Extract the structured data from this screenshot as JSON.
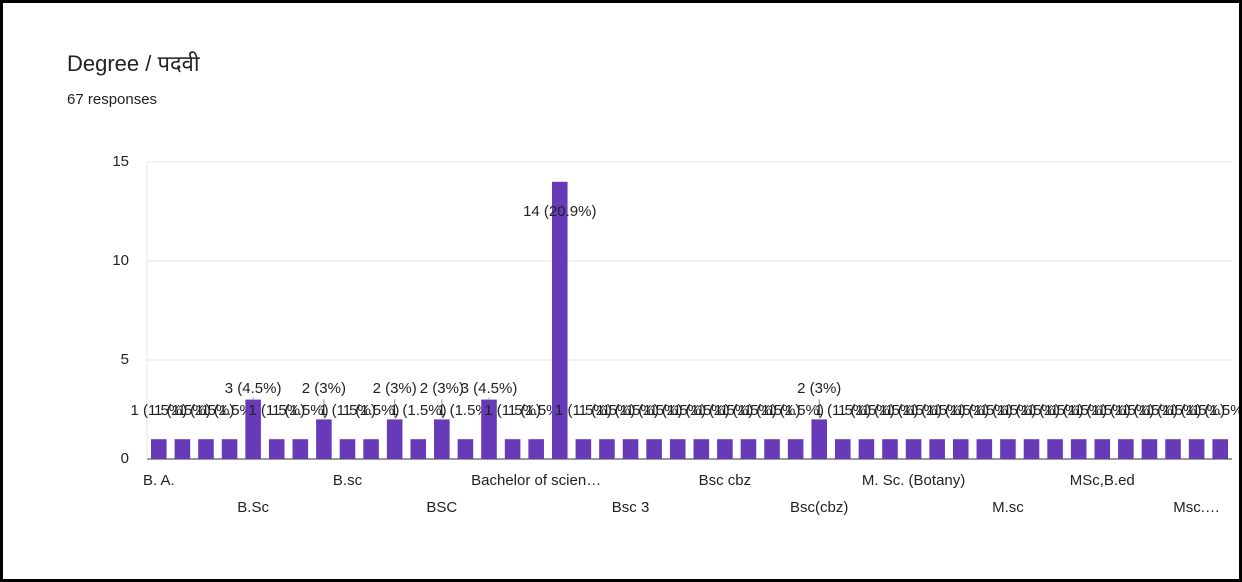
{
  "chart_data": {
    "type": "bar",
    "title": "Degree / पदवी",
    "subtitle": "67 responses",
    "categories": [
      "B. A.",
      null,
      null,
      null,
      "B.Sc",
      null,
      null,
      null,
      "B.sc",
      null,
      null,
      null,
      "BSC",
      null,
      null,
      null,
      "Bachelor of scien…",
      null,
      null,
      null,
      "Bsc 3",
      null,
      null,
      null,
      "Bsc cbz",
      null,
      null,
      null,
      "Bsc(cbz)",
      null,
      null,
      null,
      "M. Sc. (Botany)",
      null,
      null,
      null,
      "M.sc",
      null,
      null,
      null,
      "MSc,B.ed",
      null,
      null,
      null,
      "Msc.…",
      null
    ],
    "values": [
      1,
      1,
      1,
      1,
      3,
      1,
      1,
      2,
      1,
      1,
      2,
      1,
      2,
      1,
      3,
      1,
      1,
      14,
      1,
      1,
      1,
      1,
      1,
      1,
      1,
      1,
      1,
      1,
      2,
      1,
      1,
      1,
      1,
      1,
      1,
      1,
      1,
      1,
      1,
      1,
      1,
      1,
      1,
      1,
      1,
      1
    ],
    "value_labels": [
      "1 (1.5%)",
      "1 (1.5%)",
      "1 (1.5%)",
      "1 (1.5%)",
      "3 (4.5%)",
      "1 (1.5%)",
      "1 (1.5%)",
      "2 (3%)",
      "1 (1.5%)",
      "1 (1.5%)",
      "2 (3%)",
      "1 (1.5%)",
      "2 (3%)",
      "1 (1.5%)",
      "3 (4.5%)",
      "1 (1.5%)",
      "1 (1.5%)",
      "14 (20.9%)",
      "1 (1.5%)",
      "1 (1.5%)",
      "1 (1.5%)",
      "1 (1.5%)",
      "1 (1.5%)",
      "1 (1.5%)",
      "1 (1.5%)",
      "1 (1.5%)",
      "1 (1.5%)",
      "1 (1.5%)",
      "2 (3%)",
      "1 (1.5%)",
      "1 (1.5%)",
      "1 (1.5%)",
      "1 (1.5%)",
      "1 (1.5%)",
      "1 (1.5%)",
      "1 (1.5%)",
      "1 (1.5%)",
      "1 (1.5%)",
      "1 (1.5%)",
      "1 (1.5%)",
      "1 (1.5%)",
      "1 (1.5%)",
      "1 (1.5%)",
      "1 (1.5%)",
      "1 (1.5%)",
      "1 (1.5%)"
    ],
    "color": "#673ab7",
    "ylim": [
      0,
      15
    ],
    "yticks": [
      0,
      5,
      10,
      15
    ],
    "grid": true
  }
}
